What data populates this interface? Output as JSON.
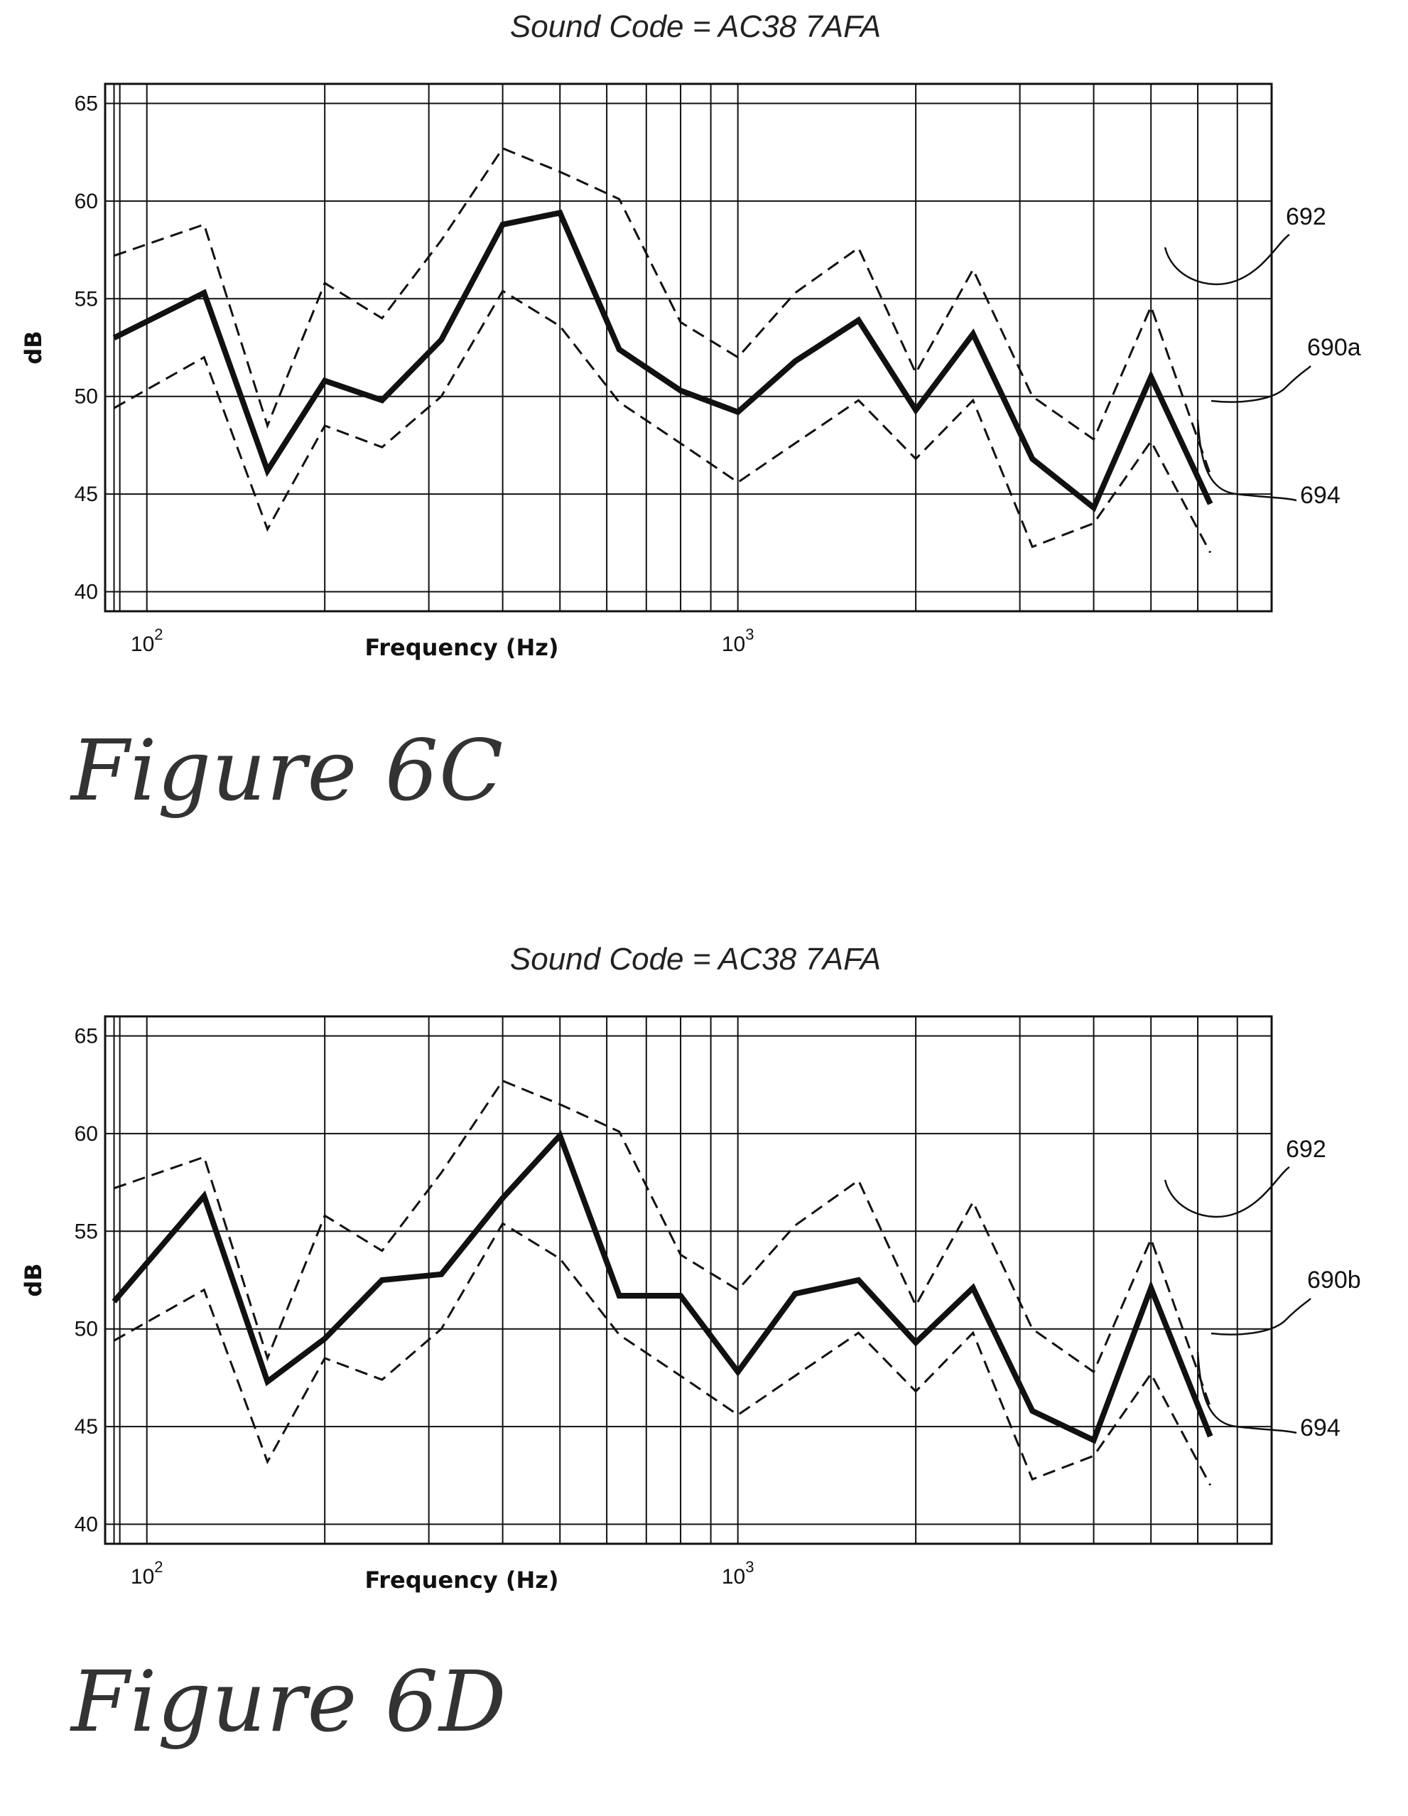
{
  "chart_data": [
    {
      "type": "line",
      "title": "Sound Code = AC38 7AFA",
      "xlabel": "Frequency (Hz)",
      "ylabel": "dB",
      "x_scale": "log",
      "xlim": [
        85,
        8000
      ],
      "ylim": [
        39,
        66
      ],
      "x_ticks": [
        100,
        1000
      ],
      "y_ticks": [
        40,
        45,
        50,
        55,
        60,
        65
      ],
      "grid": true,
      "x": [
        88,
        125,
        160,
        200,
        250,
        315,
        400,
        500,
        630,
        800,
        1000,
        1250,
        1600,
        2000,
        2500,
        3150,
        4000,
        5000,
        6300
      ],
      "series": [
        {
          "name": "692",
          "style": "dashed",
          "values": [
            57.2,
            58.8,
            48.5,
            55.8,
            54.0,
            58.0,
            62.7,
            61.5,
            60.1,
            53.8,
            52.0,
            55.3,
            57.6,
            51.2,
            56.5,
            50.0,
            47.8,
            54.6,
            46.0
          ]
        },
        {
          "name": "690a",
          "style": "solid",
          "values": [
            53.0,
            55.3,
            46.2,
            50.8,
            49.8,
            52.9,
            58.8,
            59.4,
            52.4,
            50.3,
            49.2,
            51.8,
            53.9,
            49.3,
            53.2,
            46.8,
            44.3,
            51.0,
            44.5
          ]
        },
        {
          "name": "694",
          "style": "dashed",
          "values": [
            49.4,
            52.0,
            43.2,
            48.5,
            47.4,
            50.0,
            55.4,
            53.6,
            49.7,
            47.6,
            45.6,
            47.6,
            49.8,
            46.8,
            49.8,
            42.3,
            43.5,
            47.7,
            42.0
          ]
        }
      ],
      "callouts": [
        "692",
        "690a",
        "694"
      ],
      "caption": "Figure 6C"
    },
    {
      "type": "line",
      "title": "Sound Code = AC38 7AFA",
      "xlabel": "Frequency (Hz)",
      "ylabel": "dB",
      "x_scale": "log",
      "xlim": [
        85,
        8000
      ],
      "ylim": [
        39,
        66
      ],
      "x_ticks": [
        100,
        1000
      ],
      "y_ticks": [
        40,
        45,
        50,
        55,
        60,
        65
      ],
      "grid": true,
      "x": [
        88,
        125,
        160,
        200,
        250,
        315,
        400,
        500,
        630,
        800,
        1000,
        1250,
        1600,
        2000,
        2500,
        3150,
        4000,
        5000,
        6300
      ],
      "series": [
        {
          "name": "692",
          "style": "dashed",
          "values": [
            57.2,
            58.8,
            48.5,
            55.8,
            54.0,
            58.0,
            62.7,
            61.5,
            60.1,
            53.8,
            52.0,
            55.3,
            57.6,
            51.2,
            56.5,
            50.0,
            47.8,
            54.6,
            46.0
          ]
        },
        {
          "name": "690b",
          "style": "solid",
          "values": [
            51.4,
            56.8,
            47.3,
            49.5,
            52.5,
            52.8,
            56.7,
            59.9,
            51.7,
            51.7,
            47.8,
            51.8,
            52.5,
            49.3,
            52.1,
            45.8,
            44.3,
            52.1,
            44.5
          ]
        },
        {
          "name": "694",
          "style": "dashed",
          "values": [
            49.4,
            52.0,
            43.2,
            48.5,
            47.4,
            50.0,
            55.4,
            53.6,
            49.7,
            47.6,
            45.6,
            47.6,
            49.8,
            46.8,
            49.8,
            42.3,
            43.5,
            47.7,
            42.0
          ]
        }
      ],
      "callouts": [
        "692",
        "690b",
        "694"
      ],
      "caption": "Figure 6D"
    }
  ]
}
